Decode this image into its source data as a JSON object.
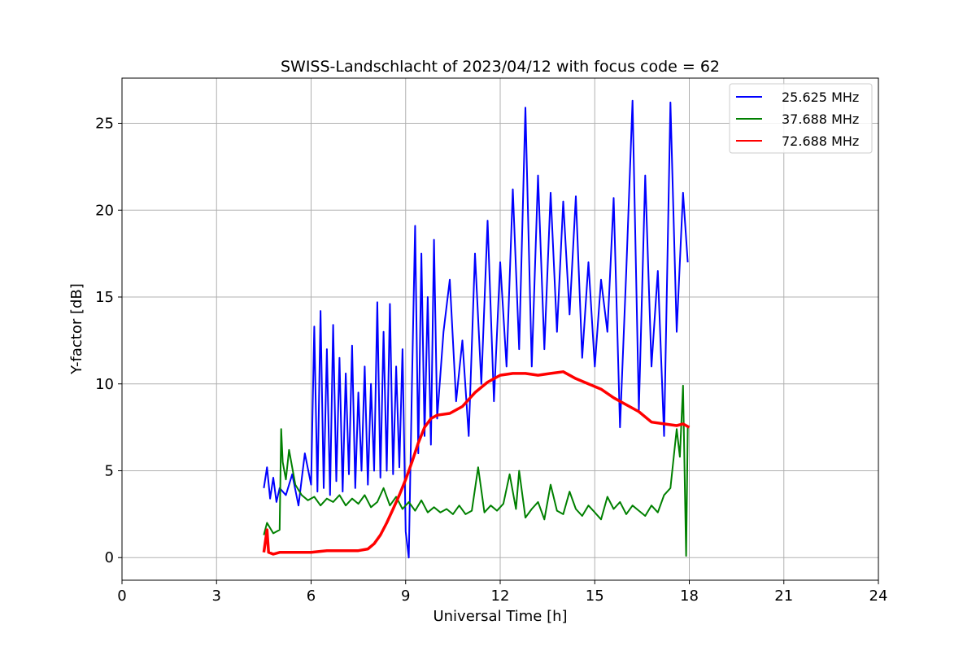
{
  "chart_data": {
    "type": "line",
    "title": "SWISS-Landschlacht of 2023/04/12 with focus code = 62",
    "xlabel": "Universal Time [h]",
    "ylabel": "Y-factor [dB]",
    "xlim": [
      0,
      24
    ],
    "ylim": [
      -1.3,
      27.6
    ],
    "xticks": [
      0,
      3,
      6,
      9,
      12,
      15,
      18,
      21,
      24
    ],
    "xtick_labels": [
      "0",
      "3",
      "6",
      "9",
      "12",
      "15",
      "18",
      "21",
      "24"
    ],
    "yticks": [
      0,
      5,
      10,
      15,
      20,
      25
    ],
    "ytick_labels": [
      "0",
      "5",
      "10",
      "15",
      "20",
      "25"
    ],
    "grid": true,
    "legend_position": "top-right",
    "series": [
      {
        "name": "25.625 MHz",
        "color": "#0000ff",
        "x": [
          4.5,
          4.6,
          4.7,
          4.8,
          4.9,
          5.0,
          5.2,
          5.4,
          5.6,
          5.8,
          6.0,
          6.1,
          6.2,
          6.3,
          6.4,
          6.5,
          6.6,
          6.7,
          6.8,
          6.9,
          7.0,
          7.1,
          7.2,
          7.3,
          7.4,
          7.5,
          7.6,
          7.7,
          7.8,
          7.9,
          8.0,
          8.1,
          8.2,
          8.3,
          8.4,
          8.5,
          8.6,
          8.7,
          8.8,
          8.9,
          9.0,
          9.1,
          9.2,
          9.3,
          9.4,
          9.5,
          9.6,
          9.7,
          9.8,
          9.9,
          10.0,
          10.2,
          10.4,
          10.6,
          10.8,
          11.0,
          11.2,
          11.4,
          11.6,
          11.8,
          12.0,
          12.2,
          12.4,
          12.6,
          12.8,
          13.0,
          13.2,
          13.4,
          13.6,
          13.8,
          14.0,
          14.2,
          14.4,
          14.6,
          14.8,
          15.0,
          15.2,
          15.4,
          15.6,
          15.8,
          16.0,
          16.2,
          16.4,
          16.6,
          16.8,
          17.0,
          17.2,
          17.4,
          17.6,
          17.8,
          17.95
        ],
        "values": [
          4.0,
          5.2,
          3.4,
          4.6,
          3.2,
          4.0,
          3.6,
          4.8,
          3.0,
          6.0,
          4.2,
          13.3,
          3.8,
          14.2,
          4.0,
          12.0,
          3.6,
          13.4,
          4.4,
          11.5,
          3.8,
          10.6,
          4.8,
          12.2,
          4.0,
          9.5,
          5.0,
          11.0,
          4.2,
          10.0,
          5.0,
          14.7,
          4.6,
          13.0,
          5.0,
          14.6,
          4.8,
          11.0,
          5.2,
          12.0,
          1.5,
          0.0,
          10.0,
          19.1,
          6.0,
          17.5,
          7.0,
          15.0,
          6.5,
          18.3,
          8.0,
          13.0,
          16.0,
          9.0,
          12.5,
          7.0,
          17.5,
          10.0,
          19.4,
          9.0,
          17.0,
          11.0,
          21.2,
          12.0,
          25.9,
          11.0,
          22.0,
          12.0,
          21.0,
          13.0,
          20.5,
          14.0,
          20.8,
          11.5,
          17.0,
          11.0,
          16.0,
          13.0,
          20.7,
          7.5,
          16.5,
          26.3,
          8.5,
          22.0,
          11.0,
          16.5,
          7.0,
          26.2,
          13.0,
          21.0,
          17.0
        ]
      },
      {
        "name": "37.688 MHz",
        "color": "#008000",
        "x": [
          4.5,
          4.6,
          4.8,
          5.0,
          5.05,
          5.1,
          5.2,
          5.3,
          5.5,
          5.7,
          5.9,
          6.1,
          6.3,
          6.5,
          6.7,
          6.9,
          7.1,
          7.3,
          7.5,
          7.7,
          7.9,
          8.1,
          8.3,
          8.5,
          8.7,
          8.9,
          9.1,
          9.3,
          9.5,
          9.7,
          9.9,
          10.1,
          10.3,
          10.5,
          10.7,
          10.9,
          11.1,
          11.3,
          11.5,
          11.7,
          11.9,
          12.1,
          12.3,
          12.5,
          12.6,
          12.8,
          13.0,
          13.2,
          13.4,
          13.6,
          13.8,
          14.0,
          14.2,
          14.4,
          14.6,
          14.8,
          15.0,
          15.2,
          15.4,
          15.6,
          15.8,
          16.0,
          16.2,
          16.4,
          16.6,
          16.8,
          17.0,
          17.2,
          17.4,
          17.6,
          17.7,
          17.8,
          17.9,
          17.95
        ],
        "values": [
          1.3,
          2.0,
          1.4,
          1.6,
          7.4,
          5.5,
          4.5,
          6.2,
          4.2,
          3.6,
          3.3,
          3.5,
          3.0,
          3.4,
          3.2,
          3.6,
          3.0,
          3.4,
          3.1,
          3.6,
          2.9,
          3.2,
          4.0,
          3.0,
          3.5,
          2.8,
          3.2,
          2.7,
          3.3,
          2.6,
          2.9,
          2.6,
          2.8,
          2.5,
          3.0,
          2.5,
          2.7,
          5.2,
          2.6,
          3.0,
          2.7,
          3.1,
          4.8,
          2.8,
          5.0,
          2.3,
          2.8,
          3.2,
          2.2,
          4.2,
          2.7,
          2.5,
          3.8,
          2.8,
          2.4,
          3.0,
          2.6,
          2.2,
          3.5,
          2.8,
          3.2,
          2.5,
          3.0,
          2.7,
          2.4,
          3.0,
          2.6,
          3.6,
          4.0,
          7.4,
          5.8,
          9.9,
          0.1,
          7.5
        ]
      },
      {
        "name": "72.688 MHz",
        "color": "#ff0000",
        "x": [
          4.5,
          4.6,
          4.65,
          4.8,
          5.0,
          5.5,
          6.0,
          6.5,
          7.0,
          7.5,
          7.8,
          8.0,
          8.2,
          8.4,
          8.6,
          8.8,
          9.0,
          9.2,
          9.4,
          9.6,
          9.8,
          10.0,
          10.4,
          10.8,
          11.2,
          11.6,
          12.0,
          12.4,
          12.8,
          13.2,
          13.6,
          14.0,
          14.4,
          14.8,
          15.2,
          15.6,
          16.0,
          16.4,
          16.8,
          17.2,
          17.6,
          17.8,
          18.0
        ],
        "values": [
          0.3,
          1.6,
          0.3,
          0.2,
          0.3,
          0.3,
          0.3,
          0.4,
          0.4,
          0.4,
          0.5,
          0.8,
          1.3,
          2.0,
          2.8,
          3.6,
          4.5,
          5.5,
          6.6,
          7.5,
          8.0,
          8.2,
          8.3,
          8.7,
          9.5,
          10.1,
          10.5,
          10.6,
          10.6,
          10.5,
          10.6,
          10.7,
          10.3,
          10.0,
          9.7,
          9.2,
          8.8,
          8.4,
          7.8,
          7.7,
          7.6,
          7.7,
          7.5
        ]
      }
    ]
  }
}
